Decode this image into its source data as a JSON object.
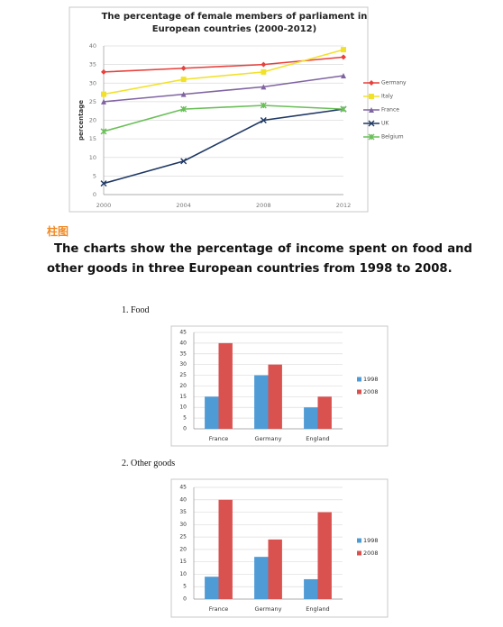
{
  "heading": "柱图",
  "paragraph": "The charts show the percentage of income spent on food and other goods in three European countries from 1998 to 2008.",
  "chart_data": [
    {
      "type": "line",
      "title": "The percentage of female members of parliament in European countries (2000-2012)",
      "y_label": "percentage",
      "x": [
        2000,
        2004,
        2008,
        2012
      ],
      "xlim": [
        2000,
        2012
      ],
      "xticks": [
        2000,
        2004,
        2008,
        2012
      ],
      "ylim": [
        0,
        40
      ],
      "yticks": [
        0,
        5,
        10,
        15,
        20,
        25,
        30,
        35,
        40
      ],
      "grid": true,
      "legend": "right",
      "series": [
        {
          "name": "Germany",
          "color": "#e8413c",
          "marker": "diamond",
          "values": [
            33,
            34,
            35,
            37
          ]
        },
        {
          "name": "Italy",
          "color": "#f2e12b",
          "marker": "square",
          "values": [
            27,
            31,
            33,
            39
          ]
        },
        {
          "name": "France",
          "color": "#8064a2",
          "marker": "triangle",
          "values": [
            25,
            27,
            29,
            32
          ]
        },
        {
          "name": "UK",
          "color": "#1f3864",
          "marker": "x",
          "values": [
            3,
            9,
            20,
            23
          ]
        },
        {
          "name": "Belgium",
          "color": "#6abf58",
          "marker": "star",
          "values": [
            17,
            23,
            24,
            23
          ]
        }
      ]
    },
    {
      "type": "bar",
      "title": "1. Food",
      "categories": [
        "France",
        "Germany",
        "England"
      ],
      "ylim": [
        0,
        45
      ],
      "yticks": [
        0,
        5,
        10,
        15,
        20,
        25,
        30,
        35,
        40,
        45
      ],
      "grid": true,
      "legend": "right",
      "series": [
        {
          "name": "1998",
          "color": "#4e9bd6",
          "values": [
            15,
            25,
            10
          ]
        },
        {
          "name": "2008",
          "color": "#d9524f",
          "values": [
            40,
            30,
            15
          ]
        }
      ]
    },
    {
      "type": "bar",
      "title": "2. Other goods",
      "categories": [
        "France",
        "Germany",
        "England"
      ],
      "ylim": [
        0,
        45
      ],
      "yticks": [
        0,
        5,
        10,
        15,
        20,
        25,
        30,
        35,
        40,
        45
      ],
      "grid": true,
      "legend": "right",
      "series": [
        {
          "name": "1998",
          "color": "#4e9bd6",
          "values": [
            9,
            17,
            8
          ]
        },
        {
          "name": "2008",
          "color": "#d9524f",
          "values": [
            40,
            24,
            35
          ]
        }
      ]
    }
  ]
}
